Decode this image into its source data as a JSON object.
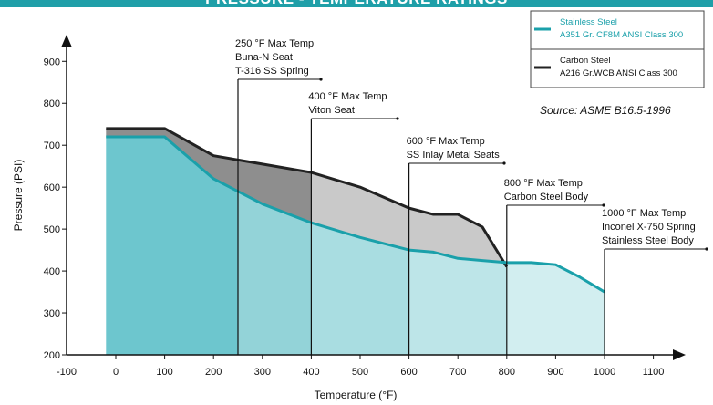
{
  "title": "PRESSURE - TEMPERATURE RATINGS",
  "source": "Source: ASME B16.5-1996",
  "colors": {
    "title_band": "#1f9fa8",
    "stainless_line": "#1aa0aa",
    "carbon_line": "#222222",
    "region_grey": "#8e8e8e",
    "region_light": "#c9c9c9",
    "zone_fills": [
      "#6dc6ce",
      "#93d3d8",
      "#a9dde1",
      "#bde5e8",
      "#d2eef0"
    ]
  },
  "legend": [
    {
      "line1": "Stainless Steel",
      "line2": "A351 Gr. CF8M ANSI Class 300",
      "color": "#1aa0aa",
      "text_color": "#1aa0aa"
    },
    {
      "line1": "Carbon Steel",
      "line2": "A216 Gr.WCB ANSI Class 300",
      "color": "#222222",
      "text_color": "#111111"
    }
  ],
  "annotations": [
    {
      "x": 250,
      "lines": [
        "250 °F Max Temp",
        "Buna-N Seat",
        "T-316 SS Spring"
      ]
    },
    {
      "x": 400,
      "lines": [
        "400 °F Max Temp",
        "Viton Seat"
      ]
    },
    {
      "x": 600,
      "lines": [
        "600 °F Max Temp",
        "SS Inlay Metal Seats"
      ]
    },
    {
      "x": 800,
      "lines": [
        "800 °F Max Temp",
        "Carbon Steel Body"
      ]
    },
    {
      "x": 1000,
      "lines": [
        "1000 °F Max Temp",
        "Inconel X-750 Spring",
        "Stainless Steel Body"
      ]
    }
  ],
  "chart_data": {
    "type": "area",
    "title": "PRESSURE - TEMPERATURE RATINGS",
    "xlabel": "Temperature (°F)",
    "ylabel": "Pressure (PSI)",
    "xlim": [
      -100,
      1150
    ],
    "ylim": [
      200,
      950
    ],
    "x_ticks": [
      -100,
      0,
      100,
      200,
      300,
      400,
      500,
      600,
      700,
      800,
      900,
      1000,
      1100
    ],
    "y_ticks": [
      200,
      300,
      400,
      500,
      600,
      700,
      800,
      900
    ],
    "grid": false,
    "legend_position": "top-right",
    "series": [
      {
        "name": "Stainless Steel A351 Gr. CF8M ANSI Class 300",
        "x": [
          -20,
          100,
          200,
          300,
          400,
          500,
          600,
          650,
          700,
          750,
          800,
          850,
          900,
          950,
          1000
        ],
        "y": [
          720,
          720,
          620,
          560,
          515,
          480,
          450,
          445,
          430,
          425,
          420,
          420,
          415,
          385,
          350
        ]
      },
      {
        "name": "Carbon Steel A216 Gr.WCB ANSI Class 300",
        "x": [
          -20,
          100,
          200,
          300,
          400,
          500,
          600,
          650,
          700,
          750,
          800
        ],
        "y": [
          740,
          740,
          675,
          655,
          635,
          600,
          550,
          535,
          535,
          505,
          410
        ]
      }
    ]
  }
}
